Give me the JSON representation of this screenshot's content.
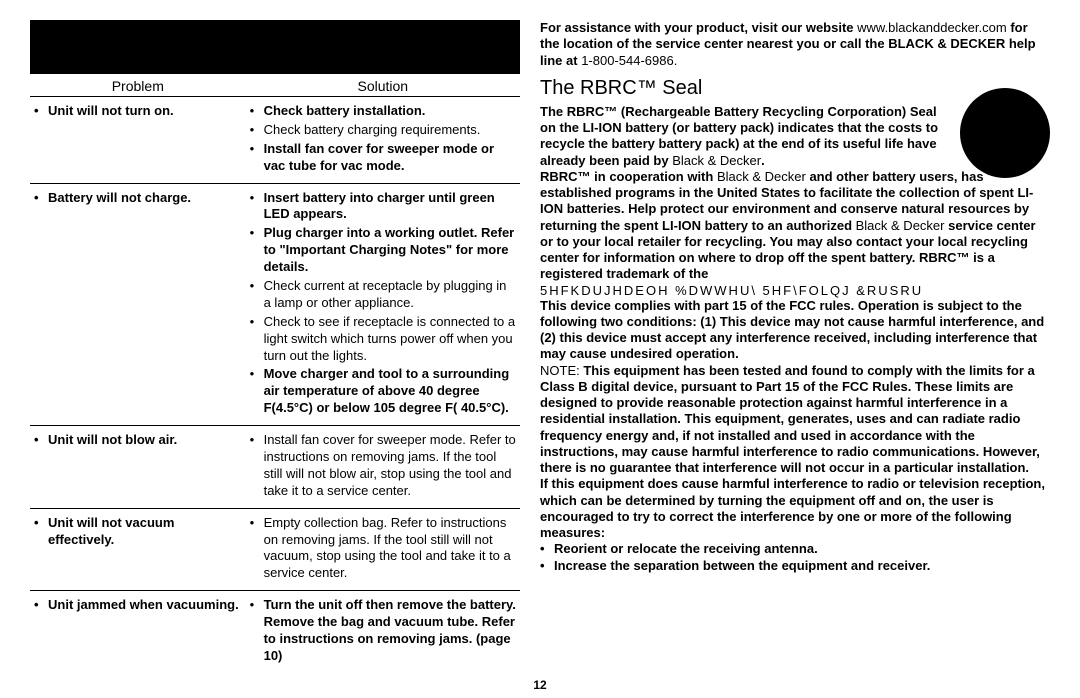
{
  "table": {
    "header_problem": "Problem",
    "header_solution": "Solution",
    "rows": [
      {
        "problem": "Unit will not turn on.",
        "solutions": [
          {
            "text": "Check battery installation.",
            "bold": true
          },
          {
            "text": "Check battery charging requirements.",
            "bold": false
          },
          {
            "text": "Install fan cover for sweeper mode or vac tube for vac mode.",
            "bold": true
          }
        ]
      },
      {
        "problem": "Battery will not charge.",
        "solutions": [
          {
            "text": "Insert battery into charger until green LED appears.",
            "bold": true
          },
          {
            "text": "Plug charger into a working outlet. Refer to \"Important Charging Notes\" for more details.",
            "bold": true
          },
          {
            "text": "Check current at receptacle by plugging in a lamp or other appliance.",
            "bold": false
          },
          {
            "text": "Check to see if receptacle is connected to a light switch which turns power off when you turn out the lights.",
            "bold": false
          },
          {
            "text": "Move charger and tool to a surrounding air temperature of above 40 degree F(4.5°C) or below 105 degree F(    40.5°C).",
            "bold": true
          }
        ]
      },
      {
        "problem": "Unit will not blow air.",
        "solutions": [
          {
            "text": "Install fan cover for sweeper mode. Refer to instructions on removing jams. If the tool still will not blow air, stop using the tool and take it to a service center.",
            "bold": false
          }
        ]
      },
      {
        "problem": "Unit will not vacuum effectively.",
        "solutions": [
          {
            "text": "Empty collection bag. Refer to instructions on removing jams. If the tool still will not vacuum, stop using the tool and take it to a service center.",
            "bold": false
          }
        ]
      },
      {
        "problem": "Unit jammed when vacuuming.",
        "solutions": [
          {
            "text": "Turn the unit off then remove the battery. Remove the bag and vacuum tube. Refer to instructions on removing jams. (page 10)",
            "bold": true
          }
        ]
      }
    ]
  },
  "right": {
    "assist1a": "For assistance with your product, visit our website ",
    "assist1b": "www.blackanddecker.com",
    "assist2a": " for the location of the service center nearest you or call the BLACK & DECKER help line at ",
    "assist2b": "1-800-544-6986.",
    "heading": "The RBRC™ Seal",
    "seal1": "The RBRC™ (Rechargeable Battery Recycling Corporation) Seal on the LI-ION battery (or battery pack) indicates that the costs to recycle the battery  battery pack) at the end of its useful life have already been paid by ",
    "seal1_bd": "Black & Decker",
    "seal1_end": ".",
    "seal2a": "RBRC™ in cooperation with ",
    "seal2b": "Black & Decker",
    "seal2c": " and other battery users, has established programs in the United States to facilitate the collection of spent LI-ION batteries. Help protect our environment and conserve natural resources by returning the spent LI-ION battery to an authorized ",
    "seal2d": "Black & Decker",
    "seal2e": " service center or to your local retailer for recycling. You may also contact your local recycling center for information on where to drop off the spent battery. ",
    "seal2f": "RBRC™ is a registered trademark of the",
    "garbled": "5HFKDUJHDEOH %DWWHU\\ 5HF\\FOLQJ &RUSRU",
    "fcc1": "This device complies with part 15 of the FCC rules. Operation is subject to the following two conditions: (1) This device may not cause harmful interference, and (2) this device must accept any interference received, including interference that may cause undesired operation.",
    "fcc_note_label": "NOTE:",
    "fcc2": " This equipment has been tested and found to comply with the limits for a Class B digital device, pursuant to Part 15 of the FCC Rules. These limits are designed to provide reasonable protection against harmful interference in a residential installation. This equipment, generates, uses and can radiate radio frequency energy and, if not installed and used in accordance with the instructions, may cause harmful interference to radio communications. However, there is no guarantee that interference will not occur in a particular installation.",
    "fcc3": "If this equipment does cause harmful interference to radio or television reception, which can be determined by turning the equipment off and on, the user is encouraged to try to correct the interference by one or more of the following measures:",
    "fcc_b1": "Reorient or relocate the receiving antenna.",
    "fcc_b2": "Increase the separation between the equipment and receiver."
  },
  "pagenum": "12"
}
